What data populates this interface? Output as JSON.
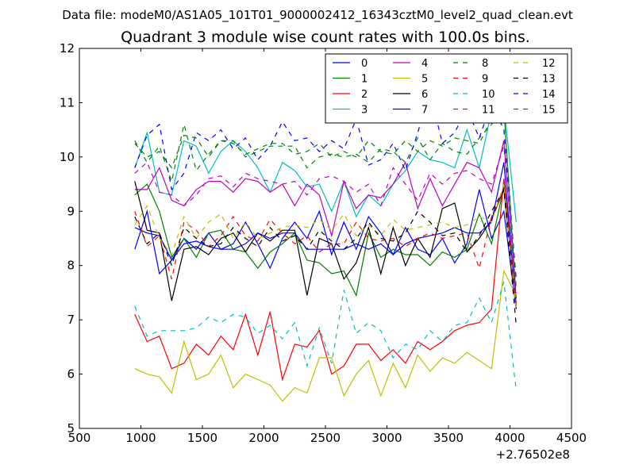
{
  "header": {
    "suptitle": "Data file: modeM0/AS1A05_101T01_9000002412_16343cztM0_level2_quad_clean.evt",
    "title": "Quadrant 3 module wise count rates with 100.0s bins."
  },
  "chart_data": {
    "type": "line",
    "title": "Quadrant 3 module wise count rates with 100.0s bins.",
    "xlabel": "",
    "ylabel": "",
    "x_offset_label": "+2.76502e8",
    "xlim": [
      500,
      4500
    ],
    "ylim": [
      5,
      12
    ],
    "xticks": [
      500,
      1000,
      1500,
      2000,
      2500,
      3000,
      3500,
      4000,
      4500
    ],
    "xtick_labels": [
      "500",
      "1000",
      "1500",
      "2000",
      "2500",
      "3000",
      "3500",
      "4000",
      "4500"
    ],
    "yticks": [
      5,
      6,
      7,
      8,
      9,
      10,
      11,
      12
    ],
    "ytick_labels": [
      "5",
      "6",
      "7",
      "8",
      "9",
      "10",
      "11",
      "12"
    ],
    "grid": false,
    "legend_position": "top-right",
    "legend_columns": 4,
    "x": [
      950,
      1050,
      1150,
      1250,
      1350,
      1450,
      1550,
      1650,
      1750,
      1850,
      1950,
      2050,
      2150,
      2250,
      2350,
      2450,
      2550,
      2650,
      2750,
      2850,
      2950,
      3050,
      3150,
      3250,
      3350,
      3450,
      3550,
      3650,
      3750,
      3850,
      3950,
      4050
    ],
    "series": [
      {
        "name": "0",
        "color": "#0000ff",
        "dash": "solid",
        "values": [
          8.3,
          9.0,
          7.85,
          8.1,
          8.5,
          8.3,
          8.6,
          8.3,
          8.4,
          8.8,
          8.4,
          7.95,
          8.5,
          8.8,
          8.5,
          9.0,
          8.2,
          8.8,
          8.3,
          8.9,
          8.6,
          8.2,
          8.7,
          8.3,
          8.2,
          8.5,
          8.05,
          8.4,
          9.4,
          8.5,
          9.0,
          7.2
        ]
      },
      {
        "name": "1",
        "color": "#008000",
        "dash": "solid",
        "values": [
          9.3,
          9.5,
          9.0,
          8.15,
          8.5,
          8.15,
          8.6,
          8.65,
          8.3,
          8.25,
          7.95,
          8.25,
          8.4,
          8.6,
          8.1,
          8.05,
          7.85,
          7.9,
          7.45,
          8.6,
          8.15,
          8.3,
          8.2,
          8.2,
          8.0,
          8.25,
          8.15,
          8.3,
          8.95,
          8.4,
          9.45,
          7.3
        ]
      },
      {
        "name": "2",
        "color": "#ff0000",
        "dash": "solid",
        "values": [
          7.1,
          6.6,
          6.7,
          6.1,
          6.2,
          6.55,
          6.35,
          6.7,
          6.45,
          7.1,
          6.35,
          7.15,
          5.9,
          6.55,
          6.5,
          6.8,
          6.0,
          6.15,
          6.55,
          6.55,
          6.25,
          6.45,
          6.2,
          6.6,
          6.45,
          6.6,
          6.8,
          6.9,
          6.95,
          7.2,
          9.6,
          7.3
        ]
      },
      {
        "name": "3",
        "color": "#00bfbf",
        "dash": "solid",
        "values": [
          9.8,
          10.45,
          9.35,
          9.3,
          10.3,
          10.2,
          9.7,
          10.1,
          10.3,
          10.1,
          9.8,
          9.35,
          9.9,
          9.75,
          9.45,
          9.5,
          9.0,
          9.55,
          8.9,
          9.3,
          9.1,
          9.5,
          9.75,
          10.1,
          9.95,
          9.9,
          9.8,
          10.5,
          9.8,
          10.85,
          10.95,
          8.8
        ]
      },
      {
        "name": "4",
        "color": "#bf00bf",
        "dash": "solid",
        "values": [
          9.4,
          9.4,
          9.8,
          9.2,
          9.1,
          9.4,
          9.55,
          9.55,
          9.35,
          9.6,
          9.55,
          9.35,
          9.5,
          9.1,
          9.5,
          9.3,
          8.55,
          9.55,
          9.05,
          9.3,
          9.25,
          9.5,
          9.9,
          9.05,
          9.6,
          9.1,
          9.5,
          9.9,
          9.8,
          9.35,
          10.3,
          7.4
        ]
      },
      {
        "name": "5",
        "color": "#bfbf00",
        "dash": "solid",
        "values": [
          6.1,
          6.0,
          5.95,
          5.65,
          6.6,
          5.9,
          6.0,
          6.35,
          5.75,
          6.0,
          5.9,
          5.8,
          5.5,
          5.75,
          5.65,
          6.3,
          6.3,
          5.6,
          6.0,
          6.25,
          5.6,
          6.2,
          5.75,
          6.35,
          6.05,
          6.3,
          6.2,
          6.4,
          6.25,
          6.1,
          7.9,
          7.45
        ]
      },
      {
        "name": "6",
        "color": "#000000",
        "dash": "solid",
        "values": [
          9.55,
          8.65,
          8.6,
          7.35,
          8.3,
          8.35,
          8.2,
          8.5,
          8.6,
          8.25,
          8.6,
          8.45,
          8.65,
          8.65,
          7.45,
          8.5,
          8.4,
          7.75,
          8.05,
          8.7,
          7.85,
          8.7,
          8.0,
          8.5,
          8.15,
          9.05,
          9.15,
          8.25,
          8.5,
          8.85,
          9.4,
          7.25
        ]
      },
      {
        "name": "7",
        "color": "#0000ff",
        "dash": "solid",
        "values": [
          8.7,
          8.6,
          8.55,
          8.1,
          8.4,
          8.45,
          8.35,
          8.3,
          8.3,
          8.4,
          8.6,
          8.5,
          8.6,
          8.6,
          8.3,
          8.3,
          8.3,
          8.3,
          8.4,
          8.3,
          8.4,
          8.2,
          8.4,
          8.5,
          8.55,
          8.6,
          8.7,
          8.6,
          8.6,
          8.8,
          9.9,
          7.2
        ]
      },
      {
        "name": "8",
        "color": "#008000",
        "dash": "dashed",
        "values": [
          10.3,
          9.9,
          10.2,
          9.55,
          10.6,
          9.75,
          10.05,
          10.3,
          10.3,
          10.0,
          10.1,
          10.2,
          10.2,
          10.2,
          9.8,
          10.0,
          10.05,
          10.0,
          10.05,
          9.9,
          10.15,
          10.1,
          9.9,
          10.35,
          9.95,
          10.25,
          10.1,
          10.05,
          10.35,
          10.6,
          10.9,
          7.4
        ]
      },
      {
        "name": "9",
        "color": "#ff0000",
        "dash": "dashed",
        "values": [
          9.0,
          8.35,
          8.55,
          7.75,
          8.8,
          8.65,
          8.35,
          8.55,
          8.9,
          8.55,
          8.45,
          8.85,
          8.6,
          8.4,
          8.55,
          8.25,
          8.4,
          8.4,
          8.8,
          8.5,
          8.45,
          8.5,
          8.35,
          8.5,
          8.6,
          8.5,
          8.55,
          8.6,
          7.95,
          8.9,
          9.4,
          7.3
        ]
      },
      {
        "name": "10",
        "color": "#00bfbf",
        "dash": "dashed",
        "values": [
          7.25,
          6.7,
          6.8,
          6.8,
          6.8,
          6.85,
          7.05,
          6.95,
          7.1,
          7.05,
          6.75,
          6.9,
          6.65,
          6.95,
          6.15,
          6.85,
          6.2,
          7.55,
          6.75,
          6.95,
          6.8,
          6.3,
          6.55,
          6.45,
          6.8,
          6.6,
          6.9,
          6.95,
          7.4,
          6.95,
          7.7,
          5.7
        ]
      },
      {
        "name": "11",
        "color": "#bf00bf",
        "dash": "dashed",
        "values": [
          9.7,
          9.9,
          9.35,
          9.3,
          9.1,
          9.3,
          9.6,
          9.65,
          9.45,
          9.7,
          9.6,
          9.55,
          9.5,
          9.55,
          9.3,
          9.6,
          9.65,
          9.55,
          9.35,
          9.5,
          9.1,
          9.8,
          9.5,
          9.2,
          9.7,
          9.5,
          9.7,
          9.75,
          9.6,
          9.5,
          10.2,
          7.5
        ]
      },
      {
        "name": "12",
        "color": "#bfbf00",
        "dash": "dashed",
        "values": [
          8.75,
          9.1,
          8.5,
          8.2,
          8.9,
          8.5,
          8.8,
          8.95,
          8.5,
          8.8,
          8.5,
          8.6,
          8.7,
          8.75,
          8.7,
          8.85,
          8.65,
          8.95,
          8.55,
          8.75,
          8.55,
          8.85,
          8.65,
          8.7,
          8.75,
          8.8,
          8.7,
          8.75,
          8.9,
          8.8,
          9.5,
          7.2
        ]
      },
      {
        "name": "13",
        "color": "#000000",
        "dash": "dashed",
        "values": [
          8.9,
          8.4,
          8.6,
          8.0,
          8.7,
          8.5,
          8.35,
          8.4,
          8.7,
          8.5,
          8.35,
          8.7,
          8.45,
          8.55,
          8.3,
          8.65,
          8.45,
          8.3,
          8.5,
          8.8,
          8.5,
          8.45,
          8.6,
          9.0,
          8.8,
          8.55,
          8.6,
          8.25,
          8.55,
          9.0,
          9.4,
          6.9
        ]
      },
      {
        "name": "14",
        "color": "#0000ff",
        "dash": "dashed",
        "values": [
          9.8,
          10.4,
          10.6,
          9.4,
          9.7,
          10.45,
          10.3,
          10.5,
          10.15,
          10.35,
          9.95,
          10.2,
          10.65,
          10.3,
          10.35,
          10.1,
          10.3,
          10.15,
          10.7,
          9.85,
          9.95,
          10.25,
          9.75,
          10.45,
          11.2,
          10.25,
          10.45,
          10.9,
          10.35,
          11.0,
          10.5,
          7.75
        ]
      },
      {
        "name": "15",
        "color": "#008000",
        "dash": "dashed",
        "values": [
          10.25,
          10.0,
          10.1,
          9.8,
          10.4,
          10.35,
          10.0,
          10.3,
          10.25,
          10.05,
          10.15,
          10.25,
          10.25,
          10.05,
          10.1,
          10.25,
          10.0,
          10.1,
          10.0,
          10.3,
          10.1,
          10.05,
          10.3,
          10.1,
          10.3,
          10.2,
          10.35,
          10.3,
          10.25,
          10.7,
          10.85,
          7.6
        ]
      }
    ]
  }
}
